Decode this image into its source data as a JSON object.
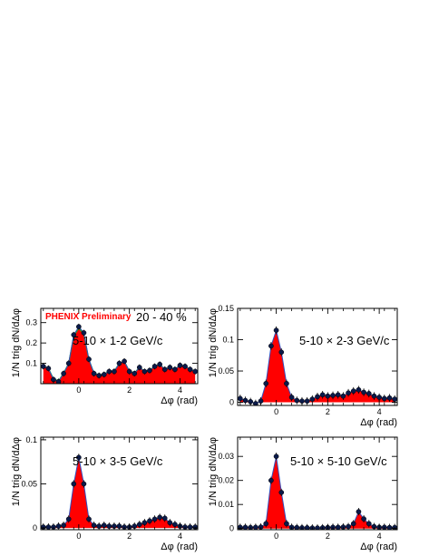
{
  "chart_data": [
    {
      "type": "area",
      "annotation": "5-10 × 1-2 GeV/c",
      "brand": "PHENIX Preliminary",
      "centrality": "20 - 40 %",
      "xlabel": "Δφ (rad)",
      "ylabel": "1/N trig dN/dΔφ",
      "xlim": [
        -1.5,
        4.7
      ],
      "ylim": [
        0,
        0.37
      ],
      "xticks": [
        0,
        2,
        4
      ],
      "yticks": [
        0.1,
        0.2,
        0.3
      ],
      "colors": {
        "fill": "#ff0000",
        "points": "#0b1a4a",
        "line": "#3050c0",
        "model": "#22aa22"
      },
      "x": [
        -1.4,
        -1.2,
        -1.0,
        -0.8,
        -0.6,
        -0.4,
        -0.2,
        0.0,
        0.2,
        0.4,
        0.6,
        0.8,
        1.0,
        1.2,
        1.4,
        1.6,
        1.8,
        2.0,
        2.2,
        2.4,
        2.6,
        2.8,
        3.0,
        3.2,
        3.4,
        3.6,
        3.8,
        4.0,
        4.2,
        4.4,
        4.6
      ],
      "y": [
        0.085,
        0.075,
        0.02,
        0.01,
        0.05,
        0.1,
        0.24,
        0.28,
        0.25,
        0.12,
        0.05,
        0.04,
        0.045,
        0.06,
        0.06,
        0.1,
        0.11,
        0.06,
        0.05,
        0.08,
        0.06,
        0.065,
        0.085,
        0.095,
        0.07,
        0.08,
        0.07,
        0.09,
        0.085,
        0.07,
        0.06
      ]
    },
    {
      "type": "area",
      "annotation": "5-10 × 2-3 GeV/c",
      "xlabel": "Δφ (rad)",
      "ylabel": "1/N trig dN/dΔφ",
      "xlim": [
        -1.5,
        4.7
      ],
      "ylim": [
        -0.005,
        0.15
      ],
      "xticks": [
        0,
        2,
        4
      ],
      "yticks": [
        0,
        0.05,
        0.1,
        0.15
      ],
      "colors": {
        "fill": "#ff0000",
        "points": "#0b1a4a",
        "line": "#3050c0",
        "model": "#22aa22"
      },
      "x": [
        -1.4,
        -1.2,
        -1.0,
        -0.8,
        -0.6,
        -0.4,
        -0.2,
        0.0,
        0.2,
        0.4,
        0.6,
        0.8,
        1.0,
        1.2,
        1.4,
        1.6,
        1.8,
        2.0,
        2.2,
        2.4,
        2.6,
        2.8,
        3.0,
        3.2,
        3.4,
        3.6,
        3.8,
        4.0,
        4.2,
        4.4,
        4.6
      ],
      "y": [
        0.006,
        0.003,
        0.001,
        -0.002,
        0.002,
        0.03,
        0.09,
        0.115,
        0.08,
        0.03,
        0.008,
        0.003,
        0.002,
        0.002,
        0.005,
        0.009,
        0.012,
        0.01,
        0.011,
        0.012,
        0.01,
        0.015,
        0.018,
        0.02,
        0.016,
        0.014,
        0.01,
        0.008,
        0.006,
        0.007,
        0.005
      ]
    },
    {
      "type": "area",
      "annotation": "5-10 × 3-5 GeV/c",
      "xlabel": "Δφ (rad)",
      "ylabel": "1/N trig dN/dΔφ",
      "xlim": [
        -1.5,
        4.7
      ],
      "ylim": [
        -0.002,
        0.103
      ],
      "xticks": [
        0,
        2,
        4
      ],
      "yticks": [
        0,
        0.05,
        0.1
      ],
      "colors": {
        "fill": "#ff0000",
        "points": "#0b1a4a",
        "line": "#3050c0",
        "model": "#22aa22"
      },
      "x": [
        -1.4,
        -1.2,
        -1.0,
        -0.8,
        -0.6,
        -0.4,
        -0.2,
        0.0,
        0.2,
        0.4,
        0.6,
        0.8,
        1.0,
        1.2,
        1.4,
        1.6,
        1.8,
        2.0,
        2.2,
        2.4,
        2.6,
        2.8,
        3.0,
        3.2,
        3.4,
        3.6,
        3.8,
        4.0,
        4.2,
        4.4,
        4.6
      ],
      "y": [
        0.001,
        0.001,
        0.001,
        0.002,
        0.003,
        0.01,
        0.05,
        0.08,
        0.05,
        0.01,
        0.003,
        0.002,
        0.003,
        0.002,
        0.002,
        0.002,
        0.001,
        0.001,
        0.002,
        0.004,
        0.006,
        0.008,
        0.01,
        0.012,
        0.011,
        0.006,
        0.004,
        0.002,
        0.001,
        0.001,
        0.001
      ]
    },
    {
      "type": "area",
      "annotation": "5-10 × 5-10 GeV/c",
      "xlabel": "Δφ (rad)",
      "ylabel": "1/N trig dN/dΔφ",
      "xlim": [
        -1.5,
        4.7
      ],
      "ylim": [
        -0.0005,
        0.038
      ],
      "xticks": [
        0,
        2,
        4
      ],
      "yticks": [
        0,
        0.01,
        0.02,
        0.03
      ],
      "colors": {
        "fill": "#ff0000",
        "points": "#0b1a4a",
        "line": "#3050c0",
        "model": "#22aa22"
      },
      "x": [
        -1.4,
        -1.2,
        -1.0,
        -0.8,
        -0.6,
        -0.4,
        -0.2,
        0.0,
        0.2,
        0.4,
        0.6,
        0.8,
        1.0,
        1.2,
        1.4,
        1.6,
        1.8,
        2.0,
        2.2,
        2.4,
        2.6,
        2.8,
        3.0,
        3.2,
        3.4,
        3.6,
        3.8,
        4.0,
        4.2,
        4.4,
        4.6
      ],
      "y": [
        0.0005,
        0.0005,
        0.0004,
        0.0005,
        0.0006,
        0.002,
        0.02,
        0.03,
        0.015,
        0.002,
        0.0005,
        0.0004,
        0.0003,
        0.0003,
        0.0002,
        0.0002,
        0.0003,
        0.0004,
        0.0005,
        0.0005,
        0.0006,
        0.0008,
        0.002,
        0.007,
        0.004,
        0.002,
        0.0008,
        0.0005,
        0.0005,
        0.0004,
        0.0004
      ]
    }
  ]
}
